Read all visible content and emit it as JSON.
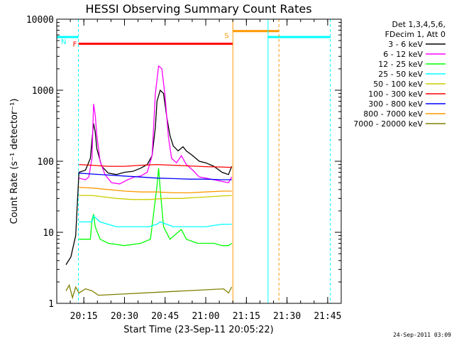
{
  "chart_data": {
    "type": "line",
    "title": "HESSI Observing Summary Count Rates",
    "xlabel": "Start Time (23-Sep-11 20:05:22)",
    "ylabel": "Count Rate (s⁻¹ detector⁻¹)",
    "yscale": "log",
    "ylim": [
      1,
      10000
    ],
    "xlim_minutes": [
      20.0833,
      21.8333
    ],
    "x_tick_labels": [
      "20:15",
      "20:30",
      "20:45",
      "21:00",
      "21:15",
      "21:30",
      "21:45"
    ],
    "y_tick_labels": [
      "1",
      "10",
      "100",
      "1000",
      "10000"
    ],
    "legend_header": [
      "Det 1,3,4,5,6,",
      "FDecim 1, Att 0"
    ],
    "grid": false,
    "legend_position": "right",
    "series": [
      {
        "name": "3 - 6 keV",
        "color": "#000000",
        "points": [
          [
            20.14,
            3.5
          ],
          [
            20.17,
            4.5
          ],
          [
            20.2,
            9
          ],
          [
            20.22,
            70
          ],
          [
            20.26,
            75
          ],
          [
            20.29,
            110
          ],
          [
            20.3,
            200
          ],
          [
            20.31,
            340
          ],
          [
            20.32,
            260
          ],
          [
            20.33,
            150
          ],
          [
            20.36,
            85
          ],
          [
            20.4,
            68
          ],
          [
            20.45,
            65
          ],
          [
            20.5,
            70
          ],
          [
            20.55,
            72
          ],
          [
            20.6,
            80
          ],
          [
            20.64,
            90
          ],
          [
            20.67,
            120
          ],
          [
            20.69,
            300
          ],
          [
            20.7,
            700
          ],
          [
            20.72,
            1000
          ],
          [
            20.74,
            900
          ],
          [
            20.76,
            420
          ],
          [
            20.78,
            230
          ],
          [
            20.8,
            165
          ],
          [
            20.83,
            140
          ],
          [
            20.86,
            160
          ],
          [
            20.88,
            140
          ],
          [
            20.92,
            120
          ],
          [
            20.96,
            100
          ],
          [
            21.0,
            95
          ],
          [
            21.05,
            85
          ],
          [
            21.1,
            70
          ],
          [
            21.14,
            65
          ],
          [
            21.16,
            85
          ]
        ]
      },
      {
        "name": "6 - 12 keV",
        "color": "#ff00ff",
        "points": [
          [
            20.22,
            58
          ],
          [
            20.26,
            55
          ],
          [
            20.28,
            60
          ],
          [
            20.3,
            110
          ],
          [
            20.31,
            640
          ],
          [
            20.32,
            450
          ],
          [
            20.33,
            230
          ],
          [
            20.35,
            100
          ],
          [
            20.38,
            65
          ],
          [
            20.42,
            50
          ],
          [
            20.47,
            48
          ],
          [
            20.52,
            55
          ],
          [
            20.56,
            60
          ],
          [
            20.6,
            62
          ],
          [
            20.64,
            70
          ],
          [
            20.67,
            120
          ],
          [
            20.69,
            900
          ],
          [
            20.71,
            2200
          ],
          [
            20.73,
            2000
          ],
          [
            20.75,
            800
          ],
          [
            20.77,
            220
          ],
          [
            20.79,
            110
          ],
          [
            20.82,
            95
          ],
          [
            20.85,
            120
          ],
          [
            20.88,
            90
          ],
          [
            20.92,
            75
          ],
          [
            20.96,
            60
          ],
          [
            21.0,
            58
          ],
          [
            21.05,
            55
          ],
          [
            21.1,
            52
          ],
          [
            21.14,
            50
          ],
          [
            21.16,
            60
          ]
        ]
      },
      {
        "name": "12 - 25 keV",
        "color": "#00ff00",
        "points": [
          [
            20.22,
            8
          ],
          [
            20.26,
            8
          ],
          [
            20.29,
            8
          ],
          [
            20.3,
            15
          ],
          [
            20.31,
            18
          ],
          [
            20.32,
            12
          ],
          [
            20.35,
            8
          ],
          [
            20.4,
            7
          ],
          [
            20.5,
            6.5
          ],
          [
            20.6,
            7
          ],
          [
            20.66,
            8
          ],
          [
            20.7,
            45
          ],
          [
            20.71,
            80
          ],
          [
            20.72,
            40
          ],
          [
            20.74,
            12
          ],
          [
            20.78,
            8
          ],
          [
            20.85,
            11
          ],
          [
            20.88,
            8
          ],
          [
            20.95,
            7
          ],
          [
            21.05,
            7
          ],
          [
            21.1,
            6.5
          ],
          [
            21.14,
            6.5
          ],
          [
            21.16,
            7
          ]
        ]
      },
      {
        "name": "25 - 50 keV",
        "color": "#00ffff",
        "points": [
          [
            20.22,
            14
          ],
          [
            20.3,
            14
          ],
          [
            20.31,
            17
          ],
          [
            20.35,
            14
          ],
          [
            20.45,
            12
          ],
          [
            20.55,
            12
          ],
          [
            20.65,
            12
          ],
          [
            20.7,
            13
          ],
          [
            20.72,
            14
          ],
          [
            20.8,
            12
          ],
          [
            20.9,
            12
          ],
          [
            21.0,
            12
          ],
          [
            21.1,
            13
          ],
          [
            21.16,
            13
          ]
        ]
      },
      {
        "name": "50 - 100 keV",
        "color": "#cccc00",
        "points": [
          [
            20.22,
            33
          ],
          [
            20.3,
            33
          ],
          [
            20.35,
            32
          ],
          [
            20.45,
            30
          ],
          [
            20.55,
            29
          ],
          [
            20.65,
            29
          ],
          [
            20.75,
            30
          ],
          [
            20.85,
            30
          ],
          [
            20.95,
            31
          ],
          [
            21.05,
            32
          ],
          [
            21.16,
            33
          ]
        ]
      },
      {
        "name": "100 - 300 keV",
        "color": "#ff0000",
        "points": [
          [
            20.22,
            90
          ],
          [
            20.3,
            88
          ],
          [
            20.4,
            85
          ],
          [
            20.5,
            85
          ],
          [
            20.6,
            88
          ],
          [
            20.7,
            90
          ],
          [
            20.8,
            88
          ],
          [
            20.9,
            86
          ],
          [
            21.0,
            84
          ],
          [
            21.1,
            83
          ],
          [
            21.16,
            82
          ]
        ]
      },
      {
        "name": "300 - 800 keV",
        "color": "#0000ff",
        "points": [
          [
            20.22,
            68
          ],
          [
            20.3,
            66
          ],
          [
            20.4,
            64
          ],
          [
            20.5,
            62
          ],
          [
            20.6,
            60
          ],
          [
            20.7,
            58
          ],
          [
            20.8,
            57
          ],
          [
            20.9,
            56
          ],
          [
            21.0,
            56
          ],
          [
            21.1,
            55
          ],
          [
            21.16,
            55
          ]
        ]
      },
      {
        "name": "800 - 7000 keV",
        "color": "#ff9900",
        "points": [
          [
            20.22,
            43
          ],
          [
            20.3,
            42
          ],
          [
            20.4,
            40
          ],
          [
            20.5,
            38
          ],
          [
            20.6,
            37
          ],
          [
            20.7,
            37
          ],
          [
            20.8,
            36
          ],
          [
            20.9,
            36
          ],
          [
            21.0,
            37
          ],
          [
            21.1,
            38
          ],
          [
            21.16,
            38
          ]
        ]
      },
      {
        "name": "7000 - 20000 keV",
        "color": "#808000",
        "points": [
          [
            20.14,
            1.5
          ],
          [
            20.16,
            1.8
          ],
          [
            20.18,
            1.2
          ],
          [
            20.2,
            1.7
          ],
          [
            20.22,
            1.4
          ],
          [
            20.26,
            1.6
          ],
          [
            20.3,
            1.5
          ],
          [
            20.34,
            1.3
          ],
          [
            21.11,
            1.6
          ],
          [
            21.14,
            1.4
          ],
          [
            21.16,
            1.7
          ]
        ]
      }
    ],
    "flag_bars": [
      {
        "label": "N",
        "color": "#00ffff",
        "x0": 20.0833,
        "x1": 20.2167,
        "y": 5600
      },
      {
        "label": "F",
        "color": "#ff0000",
        "x0": 20.2167,
        "x1": 21.1667,
        "y": 4500
      },
      {
        "label": "S",
        "color": "#ff9900",
        "x0": 21.1667,
        "x1": 21.45,
        "y": 6800
      },
      {
        "label": "",
        "color": "#00ffff",
        "x0": 21.3833,
        "x1": 21.7667,
        "y": 5600
      }
    ],
    "markers": [
      {
        "color": "#00ffff",
        "x": 20.0833,
        "dashed": false
      },
      {
        "color": "#00ffff",
        "x": 20.2167,
        "dashed": true
      },
      {
        "color": "#ff9900",
        "x": 21.1667,
        "dashed": false
      },
      {
        "color": "#00ffff",
        "x": 21.3833,
        "dashed": false
      },
      {
        "color": "#ff9900",
        "x": 21.45,
        "dashed": true
      },
      {
        "color": "#00ffff",
        "x": 21.7667,
        "dashed": true
      }
    ]
  },
  "date_stamp": "24-Sep-2011 03:09"
}
